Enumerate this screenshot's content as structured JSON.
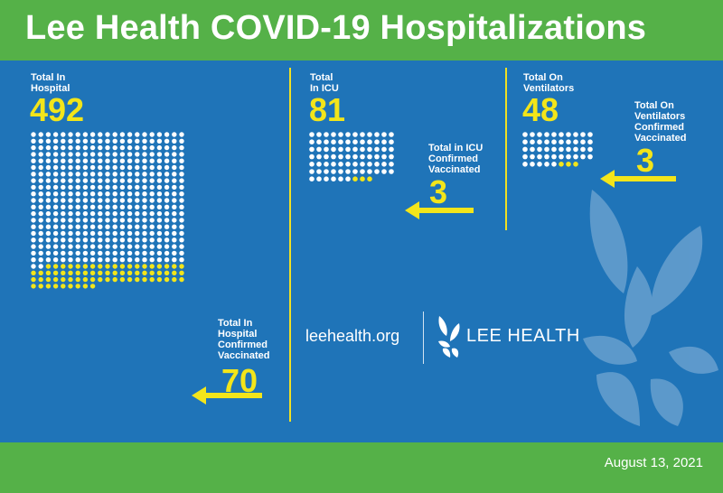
{
  "header": {
    "title": "Lee Health COVID-19 Hospitalizations"
  },
  "footer": {
    "date": "August 13, 2021"
  },
  "colors": {
    "background": "#1f74b8",
    "header": "#55b148",
    "dot_white": "#ffffff",
    "dot_yellow": "#f3e51a",
    "accent": "#f3e51a"
  },
  "branding": {
    "website": "leehealth.org",
    "logo_text": "LEE HEALTH",
    "logo_icon": "leaf-logo-icon"
  },
  "panels": {
    "hospital": {
      "label_line1": "Total In",
      "label_line2": "Hospital",
      "total": "492",
      "vax_line1": "Total In",
      "vax_line2": "Hospital",
      "vax_line3": "Confirmed",
      "vax_line4": "Vaccinated",
      "vaccinated": "70"
    },
    "icu": {
      "label_line1": "Total",
      "label_line2": "In ICU",
      "total": "81",
      "vax_line1": "Total in ICU",
      "vax_line2": "Confirmed",
      "vax_line3": "Vaccinated",
      "vaccinated": "3"
    },
    "ventilators": {
      "label_line1": "Total On",
      "label_line2": "Ventilators",
      "total": "48",
      "vax_line1": "Total On",
      "vax_line2": "Ventilators",
      "vax_line3": "Confirmed",
      "vax_line4": "Vaccinated",
      "vaccinated": "3"
    }
  },
  "chart_data": {
    "type": "bar",
    "title": "Lee Health COVID-19 Hospitalizations",
    "categories": [
      "Total In Hospital",
      "Total In ICU",
      "Total On Ventilators"
    ],
    "series": [
      {
        "name": "Total",
        "values": [
          492,
          81,
          48
        ]
      },
      {
        "name": "Confirmed Vaccinated",
        "values": [
          70,
          3,
          3
        ]
      }
    ]
  }
}
